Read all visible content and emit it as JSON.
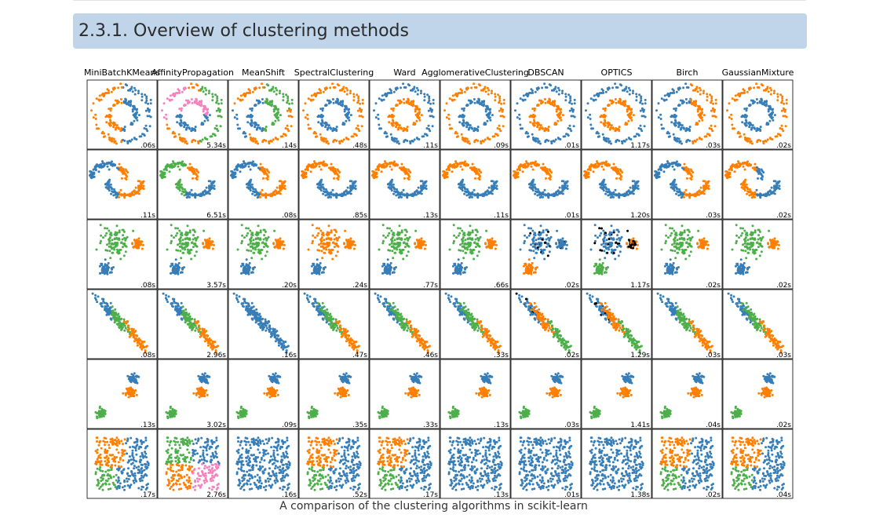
{
  "section": {
    "number": "2.3.1.",
    "title": "2.3.1. Overview of clustering methods"
  },
  "caption": "A comparison of the clustering algorithms in scikit-learn",
  "colors": {
    "blue": "#377eb8",
    "orange": "#ff7f00",
    "green": "#4daf4a",
    "pink": "#f781bf",
    "noise": "#000000",
    "header_bg": "#c0d4ea"
  },
  "chart_data": {
    "type": "scatter",
    "description_hidden": false,
    "columns": [
      "MiniBatchKMeans",
      "AffinityPropagation",
      "MeanShift",
      "SpectralClustering",
      "Ward",
      "AgglomerativeClustering",
      "DBSCAN",
      "OPTICS",
      "Birch",
      "GaussianMixture"
    ],
    "datasets": [
      "noisy_circles",
      "noisy_moons",
      "varied",
      "aniso",
      "blobs",
      "no_structure"
    ],
    "timings": [
      [
        ".06s",
        "5.34s",
        ".14s",
        ".48s",
        ".11s",
        ".09s",
        ".01s",
        "1.17s",
        ".03s",
        ".02s"
      ],
      [
        ".11s",
        "6.51s",
        ".08s",
        ".85s",
        ".13s",
        ".11s",
        ".01s",
        "1.20s",
        ".03s",
        ".02s"
      ],
      [
        ".08s",
        "3.57s",
        ".20s",
        ".24s",
        ".77s",
        ".66s",
        ".02s",
        "1.17s",
        ".02s",
        ".02s"
      ],
      [
        ".08s",
        "2.96s",
        ".16s",
        ".47s",
        ".46s",
        ".33s",
        ".02s",
        "1.29s",
        ".03s",
        ".03s"
      ],
      [
        ".13s",
        "3.02s",
        ".09s",
        ".35s",
        ".33s",
        ".13s",
        ".03s",
        "1.41s",
        ".04s",
        ".02s"
      ],
      [
        ".17s",
        "2.76s",
        ".16s",
        ".52s",
        ".17s",
        ".13s",
        ".01s",
        "1.38s",
        ".02s",
        ".04s"
      ]
    ],
    "panel_colorings": [
      [
        "ring_split_orange_left_blue_right",
        "ring_affinity_multi",
        "ring_meanshift_mixed",
        "ring_outer_orange_inner_blue",
        "ring_outer_blue_inner_orange",
        "ring_outer_orange_inner_blue",
        "ring_outer_blue_inner_orange",
        "ring_outer_blue_inner_orange",
        "ring_split_blue_left_orange_right",
        "ring_outer_orange_inner_blue"
      ],
      [
        "moons_kmeans",
        "moons_affinity",
        "moons_kmeans",
        "moons_perfect_orange_blue",
        "moons_perfect_orange_blue",
        "moons_perfect_orange_blue",
        "moons_perfect_orange_blue",
        "moons_perfect_orange_blue",
        "moons_kmeans",
        "moons_gmm"
      ],
      [
        "varied_three",
        "varied_three",
        "varied_three",
        "varied_two",
        "varied_three",
        "varied_three",
        "varied_dbscan",
        "varied_optics",
        "varied_three",
        "varied_three"
      ],
      [
        "aniso_kmeans",
        "aniso_kmeans",
        "aniso_one",
        "aniso_three",
        "aniso_three",
        "aniso_three",
        "aniso_dbscan",
        "aniso_optics",
        "aniso_kmeans",
        "aniso_three"
      ],
      [
        "blobs_three",
        "blobs_three",
        "blobs_three",
        "blobs_three",
        "blobs_three",
        "blobs_three",
        "blobs_three",
        "blobs_three",
        "blobs_three",
        "blobs_three"
      ],
      [
        "square_three",
        "square_four",
        "square_one",
        "square_three",
        "square_three",
        "square_one",
        "square_one",
        "square_one",
        "square_three",
        "square_three"
      ]
    ]
  }
}
